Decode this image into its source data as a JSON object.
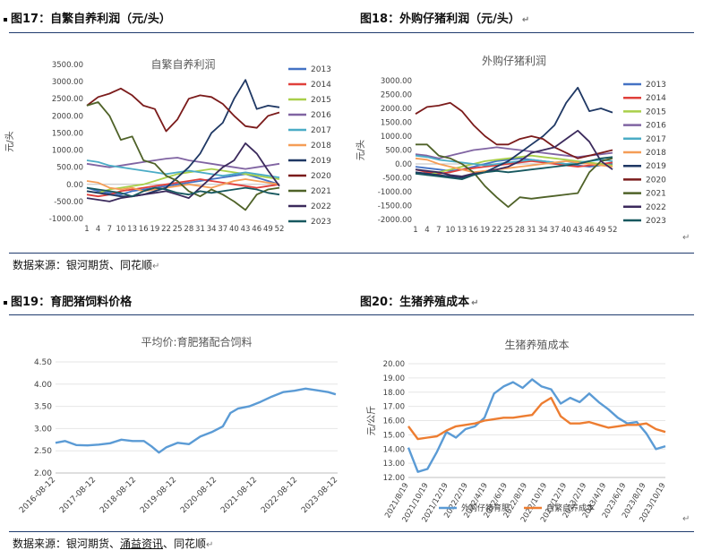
{
  "figures": {
    "f17": {
      "title": "图17：自繁自养利润（元/头）"
    },
    "f18": {
      "title": "图18：外购仔猪利润（元/头）"
    },
    "f19": {
      "title": "图19：育肥猪饲料价格"
    },
    "f20": {
      "title": "图20：生猪养殖成本"
    }
  },
  "sources": {
    "top": "数据来源：银河期货、同花顺",
    "bottom_prefix": "数据来源：银河期货、",
    "bottom_link": "涌益资讯",
    "bottom_suffix": "、同花顺"
  },
  "return_mark": "↵",
  "colors": {
    "2013": "#4472c4",
    "2014": "#e0403b",
    "2015": "#a9cf4a",
    "2016": "#8064a2",
    "2017": "#4bacc6",
    "2018": "#f59d56",
    "2019": "#1f3864",
    "2020": "#7b1b1b",
    "2021": "#4f6228",
    "2022": "#3b2a5c",
    "2023": "#17585f",
    "feed": "#5b9bd5",
    "outsourced": "#5b9bd5",
    "selfbred": "#ed7d31"
  },
  "chart_data": [
    {
      "type": "line",
      "title": "自繁自养利润",
      "ylabel": "元/头",
      "ylim": [
        -1000,
        3500
      ],
      "yticks": [
        "3500.00",
        "3000.00",
        "2500.00",
        "2000.00",
        "1500.00",
        "1000.00",
        "500.00",
        "0.00",
        "-500.00",
        "-1000.00"
      ],
      "xticks": [
        "1",
        "4",
        "7",
        "10",
        "13",
        "16",
        "19",
        "22",
        "25",
        "28",
        "31",
        "34",
        "37",
        "40",
        "43",
        "46",
        "49",
        "52"
      ],
      "x": [
        1,
        4,
        7,
        10,
        13,
        16,
        19,
        22,
        25,
        28,
        31,
        34,
        37,
        40,
        43,
        46,
        49,
        52
      ],
      "series": [
        {
          "name": "2013",
          "values": [
            -100,
            -200,
            -250,
            -300,
            -200,
            -150,
            -100,
            -50,
            0,
            50,
            100,
            150,
            200,
            250,
            300,
            200,
            100,
            0
          ]
        },
        {
          "name": "2014",
          "values": [
            -300,
            -350,
            -300,
            -200,
            -150,
            -100,
            -50,
            0,
            50,
            100,
            150,
            100,
            50,
            0,
            -50,
            -100,
            -50,
            0
          ]
        },
        {
          "name": "2015",
          "values": [
            -200,
            -250,
            -150,
            -100,
            -50,
            0,
            100,
            200,
            300,
            350,
            400,
            450,
            400,
            350,
            300,
            250,
            200,
            150
          ]
        },
        {
          "name": "2016",
          "values": [
            600,
            550,
            500,
            550,
            600,
            650,
            700,
            750,
            780,
            700,
            650,
            600,
            550,
            500,
            450,
            500,
            550,
            600
          ]
        },
        {
          "name": "2017",
          "values": [
            700,
            650,
            550,
            500,
            450,
            400,
            350,
            300,
            350,
            400,
            350,
            300,
            250,
            300,
            350,
            300,
            250,
            200
          ]
        },
        {
          "name": "2018",
          "values": [
            100,
            50,
            -100,
            -150,
            -100,
            -200,
            -150,
            -100,
            -50,
            0,
            -50,
            -100,
            0,
            100,
            150,
            100,
            50,
            0
          ]
        },
        {
          "name": "2019",
          "values": [
            -200,
            -250,
            -300,
            -350,
            -350,
            -300,
            -200,
            -100,
            200,
            500,
            900,
            1500,
            1800,
            2500,
            3050,
            2200,
            2300,
            2250
          ]
        },
        {
          "name": "2020",
          "values": [
            2300,
            2550,
            2650,
            2800,
            2600,
            2300,
            2200,
            1550,
            1900,
            2500,
            2600,
            2550,
            2350,
            2000,
            1700,
            1650,
            2000,
            2100
          ]
        },
        {
          "name": "2021",
          "values": [
            2300,
            2400,
            2000,
            1300,
            1400,
            700,
            600,
            250,
            100,
            -200,
            -350,
            -150,
            -300,
            -500,
            -750,
            -300,
            -150,
            -100
          ]
        },
        {
          "name": "2022",
          "values": [
            -400,
            -450,
            -500,
            -400,
            -350,
            -300,
            -250,
            -200,
            -300,
            -400,
            -100,
            200,
            500,
            700,
            1200,
            900,
            400,
            -50
          ]
        },
        {
          "name": "2023",
          "values": [
            -100,
            -150,
            -200,
            -250,
            -350,
            -200,
            -100,
            -150,
            -250,
            -300,
            -200,
            -250,
            -200,
            -150,
            -100,
            -150,
            -250,
            -300
          ]
        }
      ]
    },
    {
      "type": "line",
      "title": "外购仔猪利润",
      "ylabel": "元/头",
      "ylim": [
        -2000,
        3000
      ],
      "yticks": [
        "3000.00",
        "2500.00",
        "2000.00",
        "1500.00",
        "1000.00",
        "500.00",
        "0.00",
        "-500.00",
        "-1000.00",
        "-1500.00",
        "-2000.00"
      ],
      "xticks": [
        "1",
        "4",
        "7",
        "10",
        "13",
        "16",
        "19",
        "22",
        "25",
        "28",
        "31",
        "34",
        "37",
        "40",
        "43",
        "46",
        "49",
        "52"
      ],
      "x": [
        1,
        4,
        7,
        10,
        13,
        16,
        19,
        22,
        25,
        28,
        31,
        34,
        37,
        40,
        43,
        46,
        49,
        52
      ],
      "series": [
        {
          "name": "2013",
          "values": [
            -100,
            -150,
            -200,
            -250,
            -200,
            -100,
            0,
            100,
            150,
            200,
            150,
            100,
            50,
            0,
            -50,
            -100,
            -50,
            0
          ]
        },
        {
          "name": "2014",
          "values": [
            -200,
            -300,
            -350,
            -300,
            -200,
            -150,
            -100,
            -50,
            0,
            50,
            100,
            50,
            0,
            -50,
            -100,
            -50,
            0,
            50
          ]
        },
        {
          "name": "2015",
          "values": [
            -300,
            -400,
            -300,
            -200,
            -100,
            0,
            100,
            150,
            200,
            250,
            300,
            250,
            200,
            150,
            100,
            50,
            0,
            -50
          ]
        },
        {
          "name": "2016",
          "values": [
            350,
            300,
            200,
            300,
            400,
            500,
            550,
            600,
            550,
            500,
            450,
            400,
            350,
            300,
            250,
            300,
            350,
            400
          ]
        },
        {
          "name": "2017",
          "values": [
            300,
            250,
            150,
            100,
            50,
            0,
            -50,
            0,
            50,
            100,
            150,
            100,
            50,
            0,
            50,
            100,
            150,
            100
          ]
        },
        {
          "name": "2018",
          "values": [
            200,
            150,
            0,
            -100,
            -200,
            -300,
            -250,
            -200,
            -150,
            -100,
            -50,
            0,
            50,
            100,
            50,
            0,
            -50,
            -100
          ]
        },
        {
          "name": "2019",
          "values": [
            -300,
            -350,
            -400,
            -450,
            -500,
            -400,
            -300,
            -100,
            100,
            400,
            700,
            1000,
            1400,
            2200,
            2750,
            1900,
            2000,
            1850
          ]
        },
        {
          "name": "2020",
          "values": [
            1800,
            2050,
            2100,
            2200,
            1900,
            1400,
            1000,
            700,
            700,
            900,
            1000,
            900,
            600,
            400,
            200,
            300,
            400,
            500
          ]
        },
        {
          "name": "2021",
          "values": [
            700,
            700,
            300,
            200,
            0,
            -300,
            -800,
            -1200,
            -1550,
            -1200,
            -1250,
            -1200,
            -1150,
            -1100,
            -1050,
            -300,
            100,
            200
          ]
        },
        {
          "name": "2022",
          "values": [
            -200,
            -250,
            -300,
            -400,
            -450,
            -350,
            -300,
            -200,
            -100,
            100,
            400,
            500,
            600,
            900,
            1200,
            800,
            100,
            -200
          ]
        },
        {
          "name": "2023",
          "values": [
            -350,
            -400,
            -450,
            -500,
            -550,
            -400,
            -300,
            -250,
            -300,
            -250,
            -200,
            -150,
            -100,
            -50,
            0,
            100,
            200,
            250
          ]
        }
      ]
    },
    {
      "type": "line",
      "title": "平均价:育肥猪配合饲料",
      "ylim": [
        2.0,
        4.5
      ],
      "yticks": [
        "4.50",
        "4.00",
        "3.50",
        "3.00",
        "2.50",
        "2.00"
      ],
      "xticks": [
        "2016-08-12",
        "2017-08-12",
        "2018-08-12",
        "2019-08-12",
        "2020-08-12",
        "2021-08-12",
        "2022-08-12",
        "2023-08-12"
      ],
      "x": [
        2016.45,
        2016.7,
        2017.0,
        2017.3,
        2017.6,
        2017.9,
        2018.2,
        2018.5,
        2018.8,
        2019.0,
        2019.2,
        2019.4,
        2019.7,
        2020.0,
        2020.3,
        2020.6,
        2020.9,
        2021.1,
        2021.3,
        2021.6,
        2021.9,
        2022.2,
        2022.5,
        2022.8,
        2023.1,
        2023.4,
        2023.7,
        2023.9
      ],
      "series": [
        {
          "name": "平均价:育肥猪配合饲料",
          "values": [
            2.68,
            2.72,
            2.63,
            2.62,
            2.64,
            2.67,
            2.75,
            2.72,
            2.72,
            2.6,
            2.46,
            2.58,
            2.68,
            2.65,
            2.82,
            2.92,
            3.05,
            3.35,
            3.45,
            3.5,
            3.6,
            3.72,
            3.82,
            3.85,
            3.9,
            3.86,
            3.82,
            3.77
          ]
        }
      ]
    },
    {
      "type": "line",
      "title": "生猪养殖成本",
      "ylabel": "元/公斤",
      "ylim": [
        12.0,
        20.0
      ],
      "yticks": [
        "20.00",
        "19.00",
        "18.00",
        "17.00",
        "16.00",
        "15.00",
        "14.00",
        "13.00",
        "12.00"
      ],
      "xticks": [
        "2021/8/19",
        "2021/10/19",
        "2021/12/19",
        "2022/2/19",
        "2022/4/19",
        "2022/6/19",
        "2022/8/19",
        "2022/10/19",
        "2022/12/19",
        "2023/2/19",
        "2023/4/19",
        "2023/6/19",
        "2023/8/19",
        "2023/10/19"
      ],
      "x": [
        0,
        1,
        2,
        3,
        4,
        5,
        6,
        7,
        8,
        9,
        10,
        11,
        12,
        13,
        14,
        15,
        16,
        17,
        18,
        19,
        20,
        21,
        22,
        23,
        24,
        25,
        26,
        27
      ],
      "series": [
        {
          "name": "外购仔猪育肥",
          "values": [
            14.1,
            12.4,
            12.6,
            13.8,
            15.2,
            14.8,
            15.4,
            15.6,
            16.2,
            17.9,
            18.4,
            18.7,
            18.3,
            18.9,
            18.4,
            18.2,
            17.2,
            17.6,
            17.3,
            17.9,
            17.3,
            16.8,
            16.2,
            15.8,
            15.9,
            15.1,
            14.0,
            14.2
          ]
        },
        {
          "name": "自繁自养成本",
          "values": [
            15.6,
            14.7,
            14.8,
            14.9,
            15.3,
            15.6,
            15.7,
            15.8,
            16.0,
            16.1,
            16.2,
            16.2,
            16.3,
            16.4,
            17.2,
            17.6,
            16.3,
            15.8,
            15.8,
            15.9,
            15.7,
            15.5,
            15.6,
            15.7,
            15.7,
            15.8,
            15.4,
            15.2
          ]
        }
      ]
    }
  ]
}
